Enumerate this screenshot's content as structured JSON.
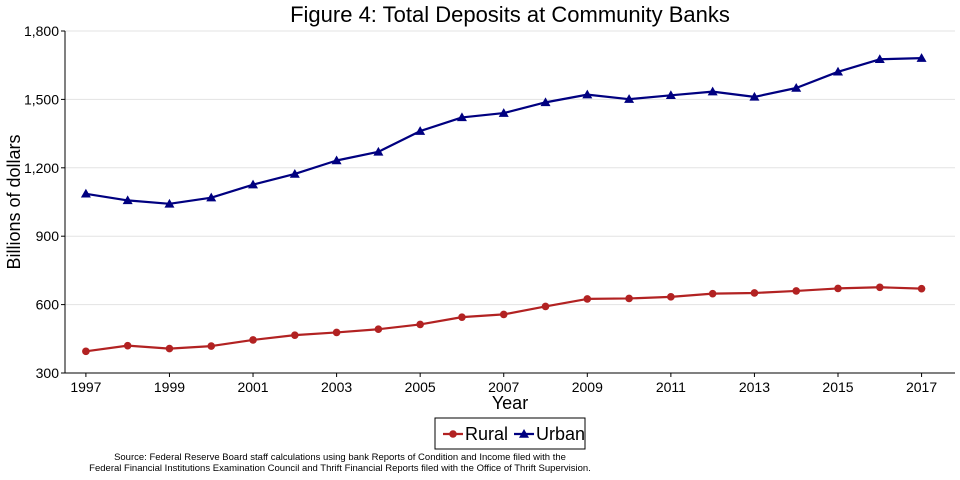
{
  "chart_data": {
    "type": "line",
    "title": "Figure 4: Total Deposits at Community Banks",
    "xlabel": "Year",
    "ylabel": "Billions of dollars",
    "x": [
      1997,
      1998,
      1999,
      2000,
      2001,
      2002,
      2003,
      2004,
      2005,
      2006,
      2007,
      2008,
      2009,
      2010,
      2011,
      2012,
      2013,
      2014,
      2015,
      2016,
      2017
    ],
    "xticks": [
      1997,
      1999,
      2001,
      2003,
      2005,
      2007,
      2009,
      2011,
      2013,
      2015,
      2017
    ],
    "ylim": [
      300,
      1800
    ],
    "yticks": [
      300,
      600,
      900,
      1200,
      1500,
      1800
    ],
    "ytick_labels": [
      "300",
      "600",
      "900",
      "1,200",
      "1,500",
      "1,800"
    ],
    "grid": true,
    "legend_position": "bottom",
    "series": [
      {
        "name": "Rural",
        "color": "#b22222",
        "marker": "circle",
        "values": [
          395,
          420,
          407,
          418,
          445,
          466,
          478,
          492,
          513,
          545,
          557,
          592,
          625,
          627,
          634,
          648,
          651,
          660,
          671,
          676,
          670
        ]
      },
      {
        "name": "Urban",
        "color": "#000080",
        "marker": "triangle",
        "values": [
          1086,
          1057,
          1042,
          1069,
          1126,
          1173,
          1232,
          1270,
          1361,
          1421,
          1440,
          1487,
          1521,
          1501,
          1518,
          1534,
          1511,
          1550,
          1621,
          1676,
          1681
        ]
      }
    ]
  },
  "source_note": {
    "line1": "Source: Federal Reserve Board staff calculations using bank Reports of Condition and Income filed with the",
    "line2": "Federal Financial Institutions Examination Council and Thrift Financial Reports filed with the Office of Thrift Supervision."
  }
}
